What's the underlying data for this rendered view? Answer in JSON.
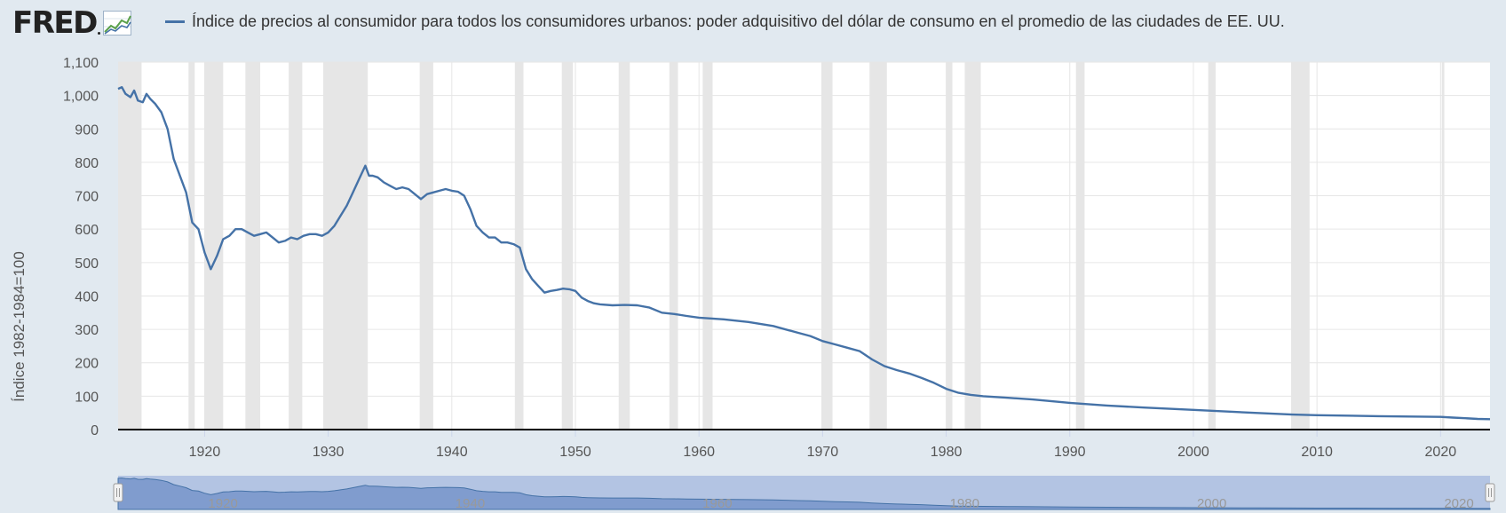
{
  "header": {
    "logo_text": "FRED",
    "logo_icon": "line-chart-icon",
    "legend_label": "Índice de precios al consumidor para todos los consumidores urbanos: poder adquisitivo del dólar de consumo en el promedio de las ciudades de EE. UU."
  },
  "colors": {
    "background": "#e1e9f0",
    "plot_background": "#ffffff",
    "series": "#4572a7",
    "recession": "#e6e6e6",
    "navigator": "#b3c4e3",
    "navigator_area": "#809cce"
  },
  "chart_data": {
    "type": "line",
    "ylabel": "Índice 1982-1984=100",
    "xlim": [
      1913,
      2024
    ],
    "ylim": [
      0,
      1100
    ],
    "y_ticks": [
      "0",
      "100",
      "200",
      "300",
      "400",
      "500",
      "600",
      "700",
      "800",
      "900",
      "1,000",
      "1,100"
    ],
    "y_tick_values": [
      0,
      100,
      200,
      300,
      400,
      500,
      600,
      700,
      800,
      900,
      1000,
      1100
    ],
    "x_ticks": [
      "1920",
      "1930",
      "1940",
      "1950",
      "1960",
      "1970",
      "1980",
      "1990",
      "2000",
      "2010",
      "2020"
    ],
    "x_tick_values": [
      1920,
      1930,
      1940,
      1950,
      1960,
      1970,
      1980,
      1990,
      2000,
      2010,
      2020
    ],
    "grid": true,
    "legend": "top",
    "recessions": [
      [
        1913.0,
        1914.9
      ],
      [
        1918.7,
        1919.2
      ],
      [
        1920.0,
        1921.5
      ],
      [
        1923.3,
        1924.5
      ],
      [
        1926.8,
        1927.9
      ],
      [
        1929.6,
        1933.2
      ],
      [
        1937.4,
        1938.5
      ],
      [
        1945.1,
        1945.8
      ],
      [
        1948.9,
        1949.8
      ],
      [
        1953.5,
        1954.4
      ],
      [
        1957.6,
        1958.3
      ],
      [
        1960.3,
        1961.1
      ],
      [
        1969.9,
        1970.8
      ],
      [
        1973.8,
        1975.2
      ],
      [
        1980.0,
        1980.5
      ],
      [
        1981.5,
        1982.8
      ],
      [
        1990.5,
        1991.2
      ],
      [
        2001.2,
        2001.8
      ],
      [
        2007.9,
        2009.4
      ],
      [
        2020.1,
        2020.3
      ]
    ],
    "series": [
      {
        "name": "Índice de precios al consumidor para todos los consumidores urbanos: poder adquisitivo del dólar de consumo en el promedio de las ciudades de EE. UU.",
        "x": [
          1913.0,
          1913.3,
          1913.6,
          1914.0,
          1914.3,
          1914.6,
          1915.0,
          1915.3,
          1915.6,
          1916.0,
          1916.5,
          1917.0,
          1917.5,
          1918.0,
          1918.5,
          1919.0,
          1919.5,
          1920.0,
          1920.5,
          1921.0,
          1921.5,
          1922.0,
          1922.5,
          1923.0,
          1923.5,
          1924.0,
          1924.5,
          1925.0,
          1925.5,
          1926.0,
          1926.5,
          1927.0,
          1927.5,
          1928.0,
          1928.5,
          1929.0,
          1929.5,
          1930.0,
          1930.5,
          1931.0,
          1931.5,
          1932.0,
          1932.5,
          1933.0,
          1933.3,
          1933.6,
          1934.0,
          1934.5,
          1935.0,
          1935.5,
          1936.0,
          1936.5,
          1937.0,
          1937.5,
          1938.0,
          1938.5,
          1939.0,
          1939.5,
          1940.0,
          1940.5,
          1941.0,
          1941.5,
          1942.0,
          1942.5,
          1943.0,
          1943.5,
          1944.0,
          1944.5,
          1945.0,
          1945.5,
          1946.0,
          1946.5,
          1947.0,
          1947.5,
          1948.0,
          1948.5,
          1949.0,
          1949.5,
          1950.0,
          1950.5,
          1951.0,
          1951.5,
          1952.0,
          1953.0,
          1954.0,
          1955.0,
          1956.0,
          1957.0,
          1958.0,
          1959.0,
          1960.0,
          1962.0,
          1964.0,
          1966.0,
          1968.0,
          1969.0,
          1970.0,
          1971.0,
          1972.0,
          1973.0,
          1974.0,
          1975.0,
          1976.0,
          1977.0,
          1978.0,
          1979.0,
          1980.0,
          1981.0,
          1982.0,
          1983.0,
          1985.0,
          1987.0,
          1990.0,
          1993.0,
          1996.0,
          2000.0,
          2005.0,
          2008.0,
          2010.0,
          2015.0,
          2020.0,
          2021.0,
          2022.0,
          2023.0,
          2024.0
        ],
        "y": [
          1020,
          1025,
          1005,
          995,
          1015,
          985,
          980,
          1005,
          990,
          975,
          950,
          900,
          810,
          760,
          710,
          620,
          600,
          530,
          480,
          520,
          570,
          580,
          600,
          600,
          590,
          580,
          585,
          590,
          575,
          560,
          565,
          575,
          570,
          580,
          585,
          585,
          580,
          590,
          610,
          640,
          670,
          710,
          750,
          790,
          760,
          760,
          755,
          740,
          730,
          720,
          725,
          720,
          705,
          690,
          705,
          710,
          715,
          720,
          715,
          712,
          700,
          660,
          610,
          590,
          575,
          575,
          560,
          560,
          555,
          545,
          480,
          450,
          430,
          410,
          415,
          418,
          422,
          420,
          415,
          395,
          385,
          378,
          375,
          372,
          373,
          372,
          365,
          350,
          346,
          340,
          335,
          330,
          322,
          310,
          290,
          280,
          265,
          255,
          245,
          235,
          210,
          190,
          178,
          168,
          155,
          140,
          122,
          110,
          104,
          100,
          95,
          90,
          80,
          72,
          66,
          59,
          50,
          45,
          43,
          40,
          38,
          36,
          34,
          32,
          31
        ]
      }
    ]
  }
}
